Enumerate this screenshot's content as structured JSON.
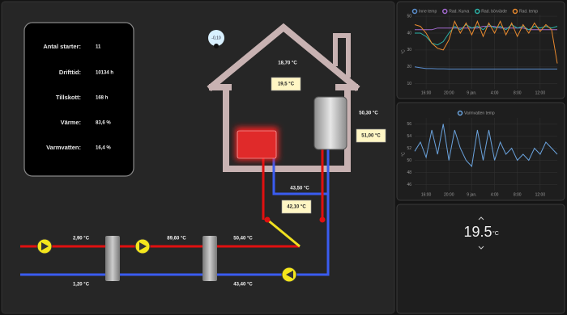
{
  "status": {
    "rows": [
      {
        "label": "Antal starter:",
        "value": "11"
      },
      {
        "label": "Drifttid:",
        "value": "10134 h"
      },
      {
        "label": "Tillskott:",
        "value": "168 h"
      },
      {
        "label": "Värme:",
        "value": "83,6 %"
      },
      {
        "label": "Varmvatten:",
        "value": "16,4 %"
      }
    ]
  },
  "outdoor": {
    "value": "-0,10"
  },
  "diagram": {
    "labels": [
      "18,70 °C",
      "50,30 °C",
      "43,50 °C",
      "2,90 °C",
      "89,60 °C",
      "50,40 °C",
      "1,20 °C",
      "43,40 °C"
    ],
    "boxed": [
      "19,5 °C",
      "51,00 °C",
      "42,10 °C"
    ]
  },
  "chart_data": [
    {
      "type": "line",
      "ylabel": "°C",
      "categories": [
        null,
        null,
        "16:00",
        null,
        null,
        null,
        "20:00",
        null,
        null,
        null,
        "9 jan.",
        null,
        null,
        null,
        "4:00",
        null,
        null,
        null,
        "8:00",
        null,
        null,
        null,
        "12:00",
        null,
        null,
        null
      ],
      "ylim": [
        7,
        51
      ],
      "yticks": [
        10,
        20,
        30,
        40,
        50
      ],
      "grid": true,
      "series": [
        {
          "name": "Inne temp",
          "color": "#5b8fd0",
          "values": [
            20,
            19.5,
            19,
            19,
            18.8,
            18.8,
            18.7,
            18.7,
            18.7,
            18.7,
            18.7,
            18.7,
            18.7,
            18.7,
            18.7,
            18.7,
            18.7,
            18.7,
            18.7,
            18.7,
            18.7,
            18.7,
            18.7,
            18.7,
            18.7,
            18.7
          ]
        },
        {
          "name": "Rad. Kurva",
          "color": "#a36ad0",
          "values": [
            42,
            42,
            42,
            42,
            43,
            43,
            43,
            43,
            43,
            43,
            43,
            43,
            44,
            44,
            44,
            43,
            43,
            43,
            43,
            43,
            42,
            42,
            42,
            42,
            42,
            42
          ]
        },
        {
          "name": "Rad. börvärde",
          "color": "#2bb3a8",
          "values": [
            40,
            40,
            38,
            34,
            33,
            35,
            40,
            44,
            42,
            45,
            43,
            44,
            42,
            45,
            43,
            44,
            42,
            45,
            43,
            44,
            42,
            44,
            43,
            44,
            43,
            44
          ]
        },
        {
          "name": "Rad. temp",
          "color": "#e8892e",
          "values": [
            45,
            44,
            40,
            34,
            31,
            30,
            36,
            47,
            40,
            46,
            39,
            47,
            38,
            46,
            40,
            47,
            39,
            46,
            38,
            45,
            40,
            46,
            41,
            45,
            42,
            22
          ]
        }
      ]
    },
    {
      "type": "line",
      "ylabel": "°C",
      "categories": [
        null,
        null,
        "16:00",
        null,
        null,
        null,
        "20:00",
        null,
        null,
        null,
        "9 jan.",
        null,
        null,
        null,
        "4:00",
        null,
        null,
        null,
        "8:00",
        null,
        null,
        null,
        "12:00",
        null,
        null,
        null
      ],
      "ylim": [
        45,
        57
      ],
      "yticks": [
        46,
        48,
        50,
        52,
        54,
        56
      ],
      "grid": true,
      "series": [
        {
          "name": "Varmvatten temp",
          "color": "#6aa2dc",
          "values": [
            51.5,
            53,
            50.5,
            55,
            51,
            56,
            50,
            55,
            52,
            50,
            49,
            55,
            50,
            55,
            50,
            53,
            51,
            52,
            50,
            51,
            50,
            52,
            51,
            53,
            52,
            51
          ]
        }
      ]
    }
  ],
  "thermostat": {
    "value": 19.5,
    "unit": "°C"
  }
}
